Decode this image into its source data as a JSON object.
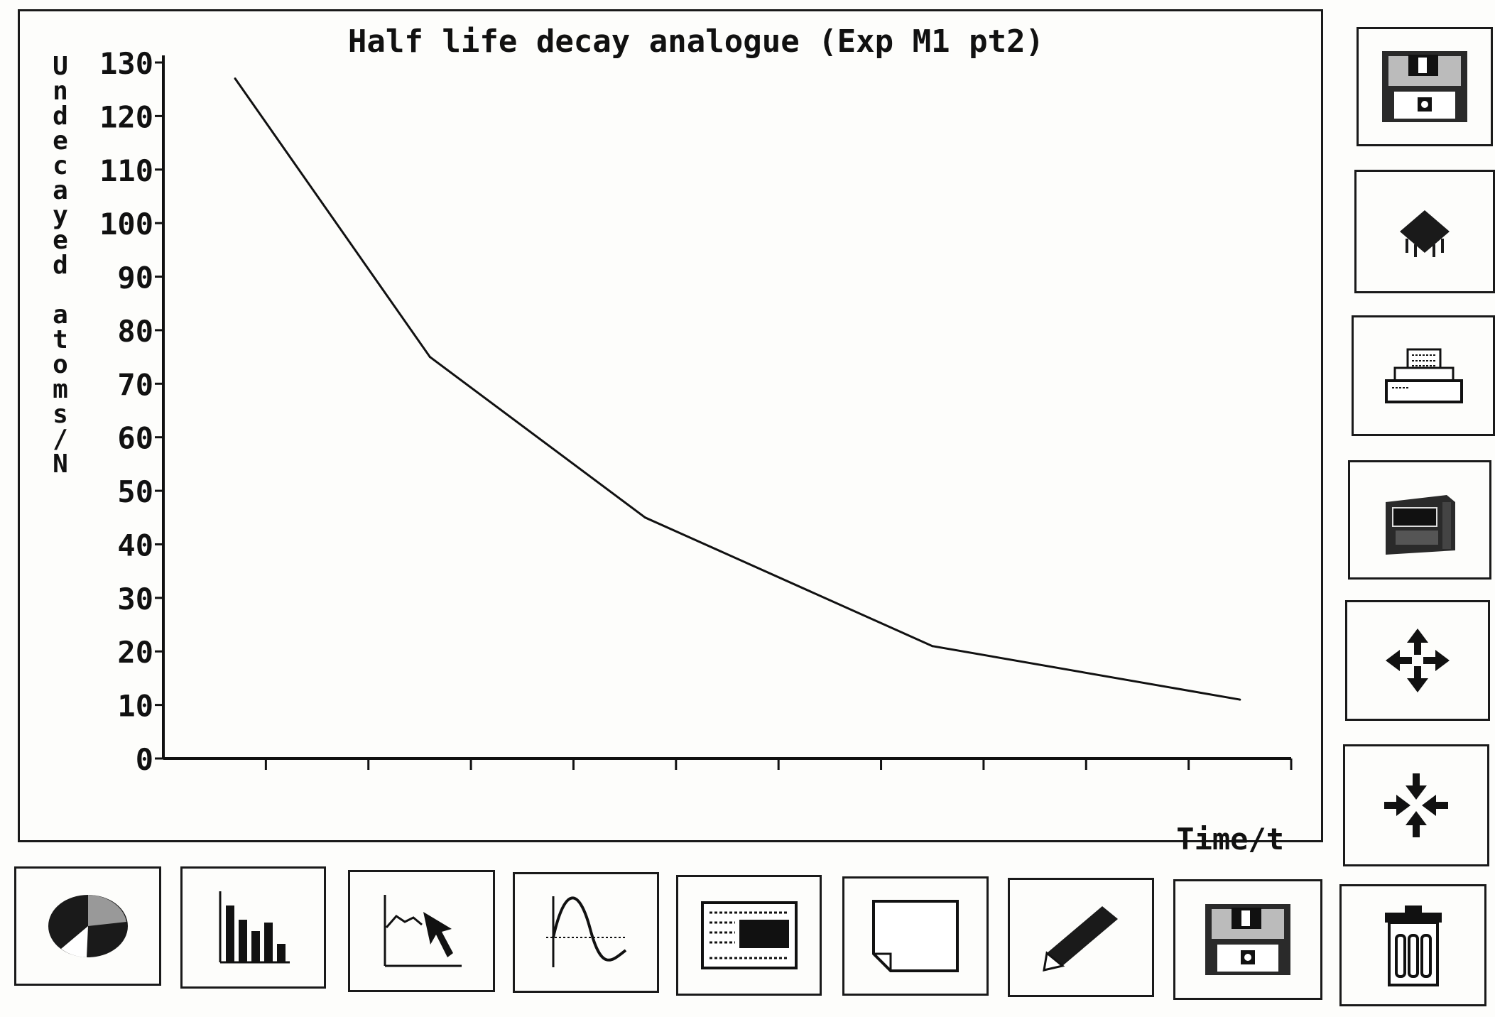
{
  "window": {},
  "chart_data": {
    "type": "line",
    "title": "Half life decay analogue (Exp M1 pt2)",
    "xlabel": "Time/t",
    "ylabel": "Undecayed atoms/N",
    "ylim": [
      0,
      130
    ],
    "yticks": [
      0,
      10,
      20,
      30,
      40,
      50,
      60,
      70,
      80,
      90,
      100,
      110,
      120,
      130
    ],
    "ytick_labels": [
      "0",
      "10",
      "20",
      "30",
      "40",
      "50",
      "60",
      "70",
      "80",
      "90",
      "100",
      "110",
      "120",
      "130"
    ],
    "xlim": [
      0,
      11
    ],
    "xticks": [
      1,
      2,
      3,
      4,
      5,
      6,
      7,
      8,
      9,
      10,
      11
    ],
    "grid": false,
    "series": [
      {
        "values_x": [
          0.7,
          2.6,
          4.7,
          7.5,
          10.5
        ],
        "values_y": [
          127,
          75,
          45,
          21,
          11
        ]
      }
    ]
  },
  "side_toolbar": {
    "items": [
      {
        "icon": "floppy-disk-save-icon"
      },
      {
        "icon": "chip-icon"
      },
      {
        "icon": "printer-icon"
      },
      {
        "icon": "disk-drive-icon"
      },
      {
        "icon": "move-arrows-outward-icon"
      },
      {
        "icon": "move-arrows-inward-icon"
      }
    ]
  },
  "bottom_toolbar": {
    "items": [
      {
        "icon": "pie-chart-icon"
      },
      {
        "icon": "bar-chart-icon"
      },
      {
        "icon": "line-graph-pointer-icon"
      },
      {
        "icon": "curve-graph-icon"
      },
      {
        "icon": "text-document-icon"
      },
      {
        "icon": "blank-page-icon"
      },
      {
        "icon": "pencil-icon"
      },
      {
        "icon": "floppy-disk-load-icon"
      },
      {
        "icon": "trash-bin-icon"
      }
    ]
  }
}
